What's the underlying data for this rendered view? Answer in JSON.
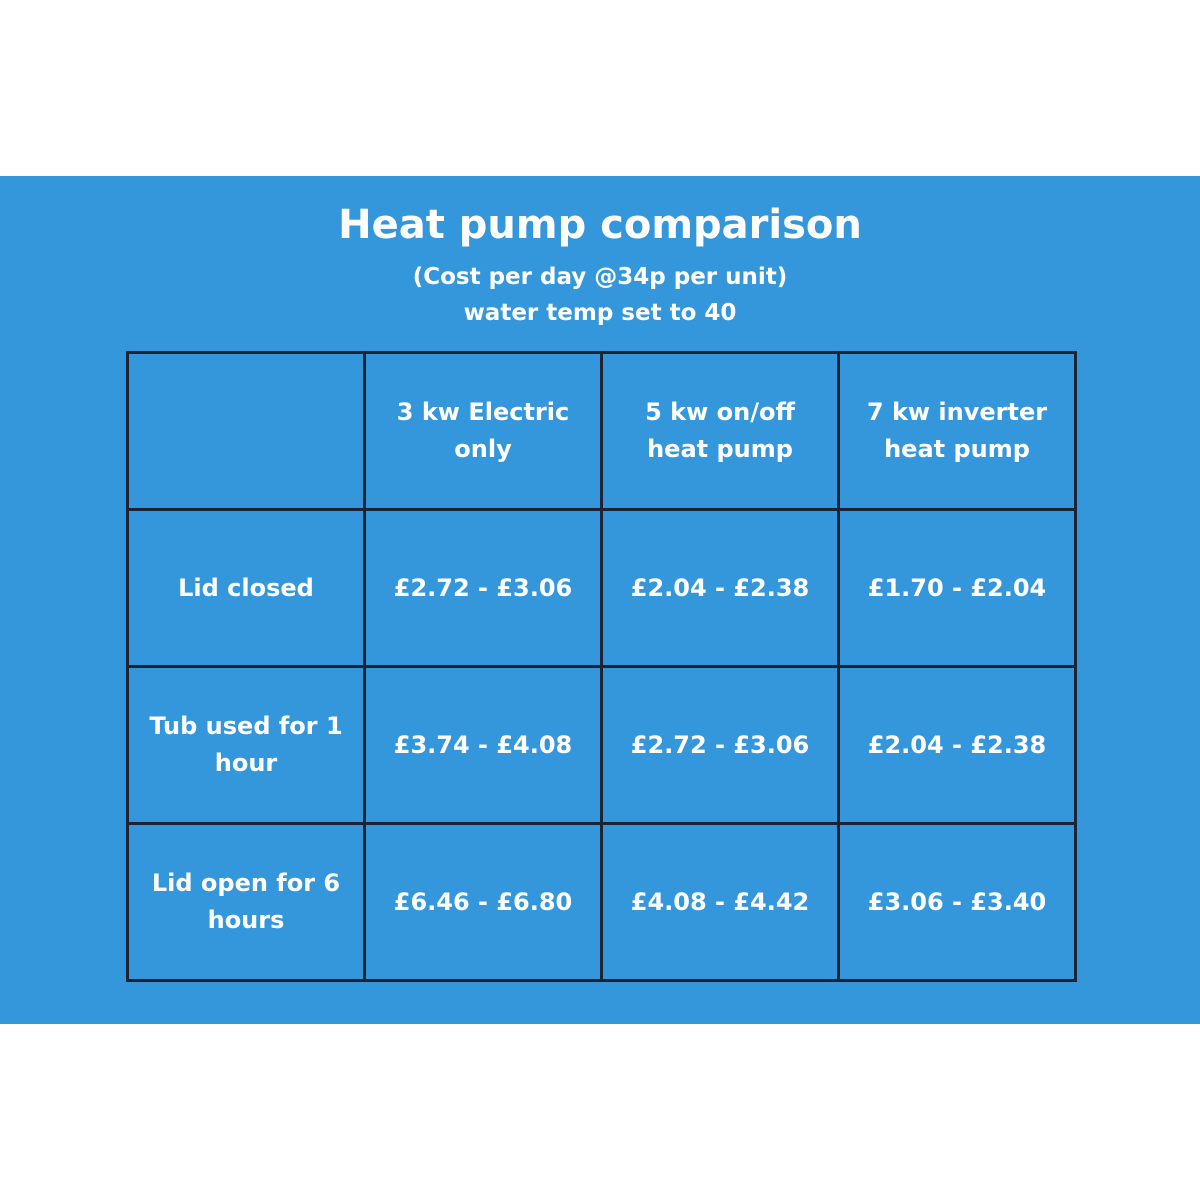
{
  "header": {
    "title": "Heat pump comparison",
    "subtitle": [
      "(Cost per day @34p per unit)",
      "water temp set to 40"
    ]
  },
  "table": {
    "columns": [
      "3 kw Electric only",
      "5 kw on/off heat pump",
      "7 kw inverter heat pump"
    ],
    "rows": [
      {
        "label": "Lid closed",
        "cells": [
          "£2.72 - £3.06",
          "£2.04 - £2.38",
          "£1.70 - £2.04"
        ]
      },
      {
        "label": "Tub used for 1 hour",
        "cells": [
          "£3.74 - £4.08",
          "£2.72 - £3.06",
          "£2.04 - £2.38"
        ]
      },
      {
        "label": "Lid open for 6 hours",
        "cells": [
          "£6.46 - £6.80",
          "£4.08 - £4.42",
          "£3.06 - £3.40"
        ]
      }
    ]
  }
}
